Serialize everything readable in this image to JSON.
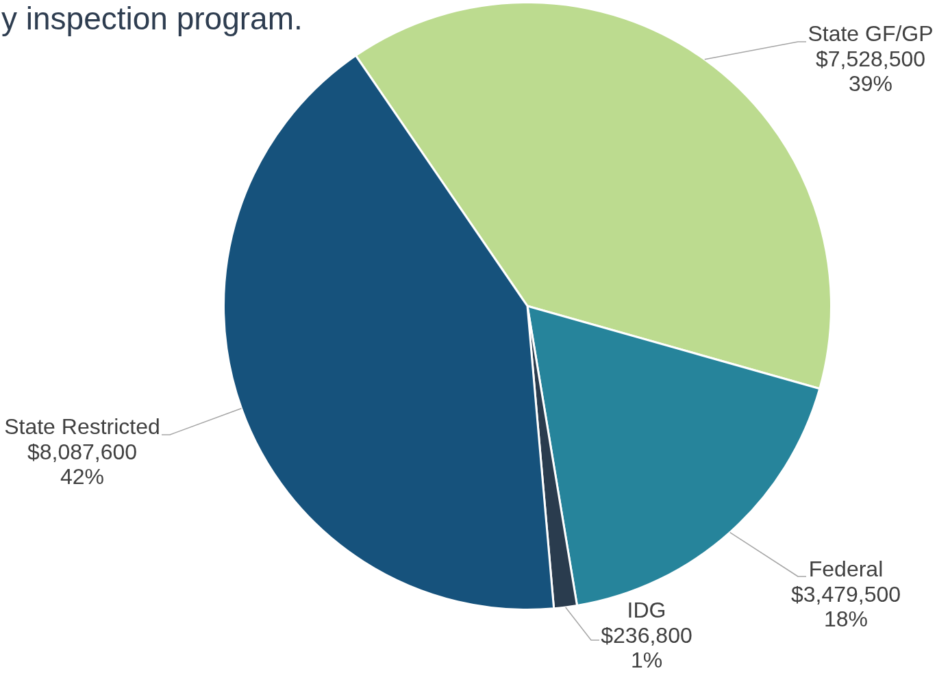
{
  "chart_data": {
    "type": "pie",
    "title": "y inspection program.",
    "categories": [
      "State GF/GP",
      "Federal",
      "IDG",
      "State Restricted"
    ],
    "values": [
      7528500,
      3479500,
      236800,
      8087600
    ],
    "colors": [
      "#bcdb8f",
      "#26849b",
      "#2a3c4e",
      "#16527c"
    ],
    "value_labels": [
      "$7,528,500\n39%",
      "$3,479,500\n18%",
      "$236,800\n1%",
      "$8,087,600\n42%"
    ]
  }
}
